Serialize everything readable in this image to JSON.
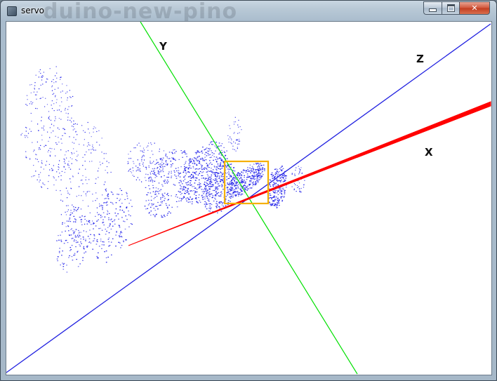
{
  "window": {
    "title": "servo",
    "background_title": "duino-new-pino",
    "controls": {
      "minimize_icon": "minimize-icon",
      "maximize_icon": "maximize-icon",
      "close_glyph": "✕"
    }
  },
  "scene": {
    "axis_labels": {
      "x": "X",
      "y": "Y",
      "z": "Z"
    },
    "colors": {
      "x_axis": "#ff0000",
      "y_axis": "#00e000",
      "z_axis": "#2020e0",
      "points": "#1010e8",
      "selection": "#f5b000"
    }
  }
}
